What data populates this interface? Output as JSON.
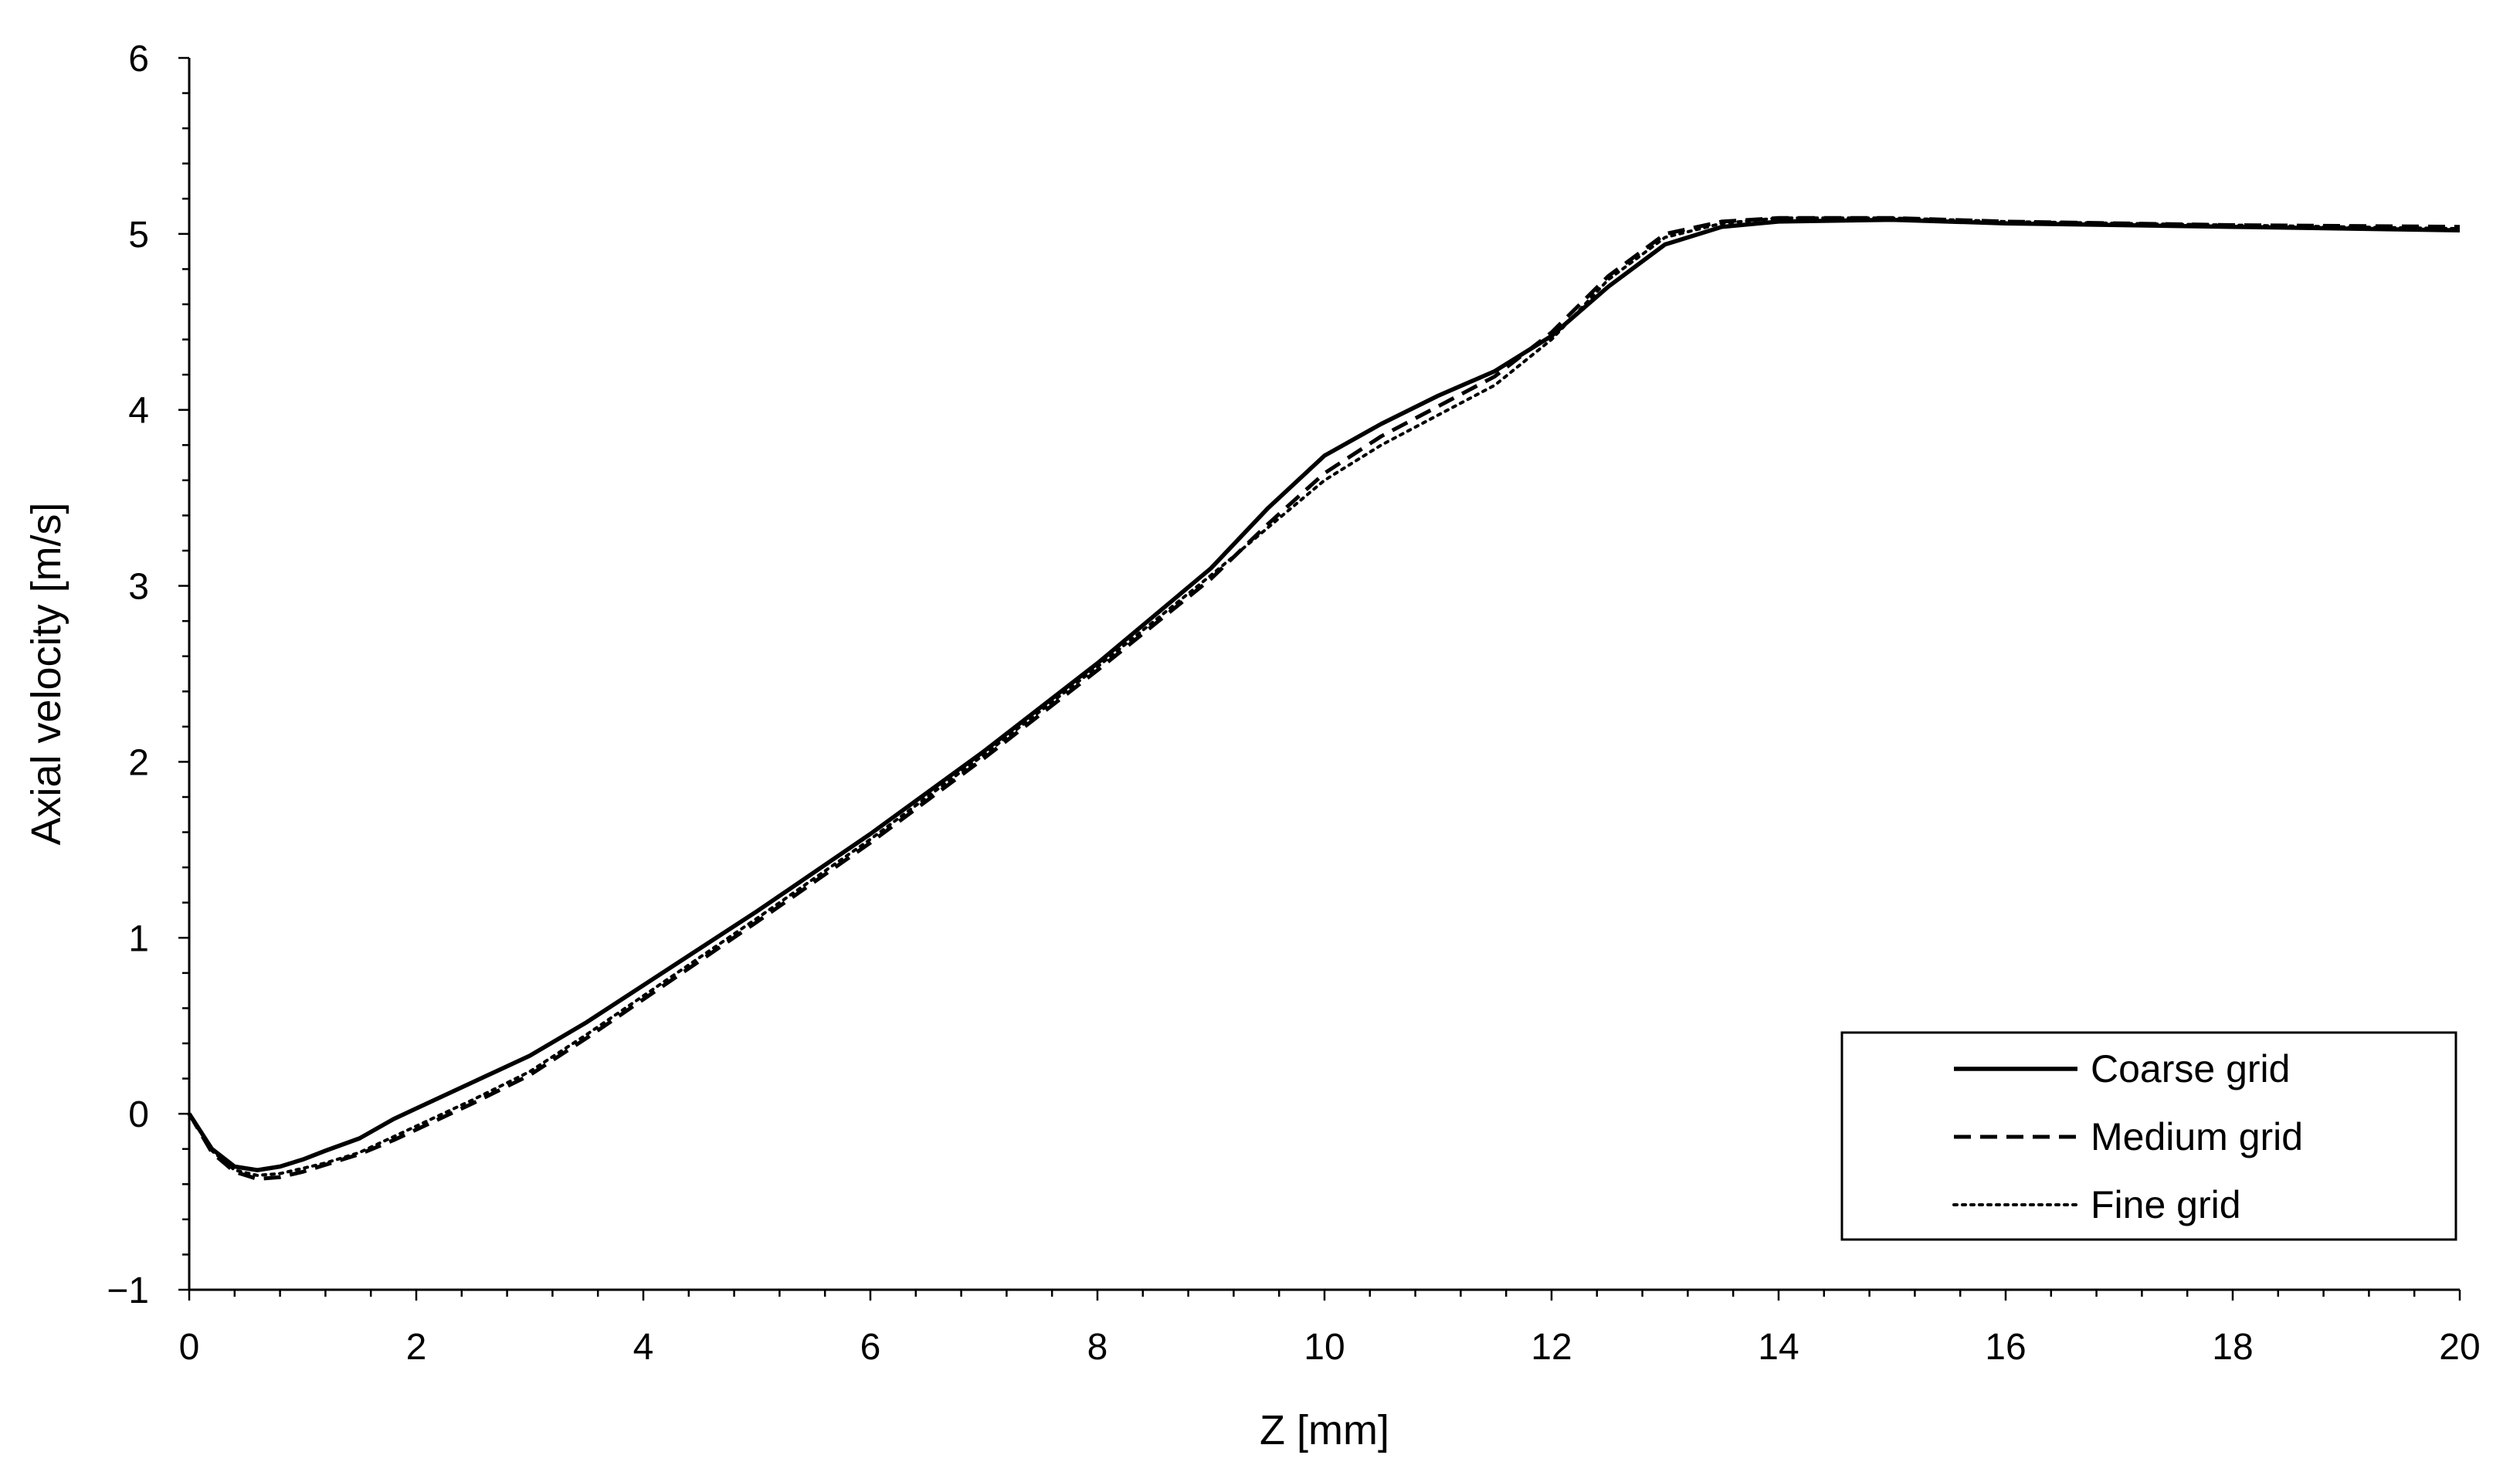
{
  "chart_data": {
    "type": "line",
    "xlabel": "Z [mm]",
    "ylabel": "Axial velocity [m/s]",
    "xlim": [
      0,
      20
    ],
    "ylim": [
      -1,
      6
    ],
    "x_ticks": [
      "0",
      "2",
      "4",
      "6",
      "8",
      "10",
      "12",
      "14",
      "16",
      "18",
      "20"
    ],
    "y_ticks": [
      "−1",
      "0",
      "1",
      "2",
      "3",
      "4",
      "5",
      "6"
    ],
    "grid": false,
    "legend_position": "bottom-right",
    "series": [
      {
        "name": "Coarse grid",
        "style": "solid",
        "x": [
          0,
          0.2,
          0.4,
          0.6,
          0.8,
          1.0,
          1.2,
          1.5,
          1.8,
          2.0,
          2.5,
          3.0,
          3.5,
          4.0,
          5.0,
          6.0,
          7.0,
          8.0,
          9.0,
          9.5,
          10.0,
          10.5,
          11.0,
          11.5,
          12.0,
          12.5,
          13.0,
          13.5,
          14.0,
          15.0,
          16.0,
          18.0,
          20.0
        ],
        "y": [
          0,
          -0.2,
          -0.3,
          -0.32,
          -0.3,
          -0.26,
          -0.21,
          -0.14,
          -0.03,
          0.03,
          0.18,
          0.33,
          0.52,
          0.73,
          1.15,
          1.59,
          2.06,
          2.56,
          3.1,
          3.44,
          3.74,
          3.92,
          4.08,
          4.22,
          4.42,
          4.7,
          4.94,
          5.04,
          5.07,
          5.08,
          5.06,
          5.04,
          5.02
        ]
      },
      {
        "name": "Medium grid",
        "style": "dashed",
        "x": [
          0,
          0.2,
          0.4,
          0.6,
          0.8,
          1.0,
          1.2,
          1.5,
          1.8,
          2.0,
          2.5,
          3.0,
          3.5,
          4.0,
          5.0,
          6.0,
          7.0,
          8.0,
          9.0,
          9.5,
          10.0,
          10.5,
          11.0,
          11.5,
          12.0,
          12.5,
          13.0,
          13.5,
          14.0,
          15.0,
          16.0,
          18.0,
          20.0
        ],
        "y": [
          0,
          -0.22,
          -0.33,
          -0.37,
          -0.36,
          -0.33,
          -0.29,
          -0.23,
          -0.15,
          -0.09,
          0.06,
          0.22,
          0.43,
          0.65,
          1.09,
          1.54,
          2.02,
          2.52,
          3.04,
          3.35,
          3.64,
          3.85,
          4.02,
          4.19,
          4.44,
          4.76,
          5.0,
          5.07,
          5.09,
          5.09,
          5.07,
          5.05,
          5.04
        ]
      },
      {
        "name": "Fine grid",
        "style": "dotted",
        "x": [
          0,
          0.2,
          0.4,
          0.6,
          0.8,
          1.0,
          1.2,
          1.5,
          1.8,
          2.0,
          2.5,
          3.0,
          3.5,
          4.0,
          5.0,
          6.0,
          7.0,
          8.0,
          9.0,
          9.5,
          10.0,
          10.5,
          11.0,
          11.5,
          12.0,
          12.5,
          13.0,
          13.5,
          14.0,
          15.0,
          16.0,
          18.0,
          20.0
        ],
        "y": [
          0,
          -0.21,
          -0.32,
          -0.35,
          -0.34,
          -0.31,
          -0.28,
          -0.22,
          -0.13,
          -0.07,
          0.08,
          0.24,
          0.45,
          0.67,
          1.11,
          1.56,
          2.04,
          2.54,
          3.06,
          3.33,
          3.6,
          3.8,
          3.97,
          4.14,
          4.4,
          4.74,
          4.98,
          5.06,
          5.09,
          5.09,
          5.07,
          5.05,
          5.03
        ]
      }
    ]
  }
}
